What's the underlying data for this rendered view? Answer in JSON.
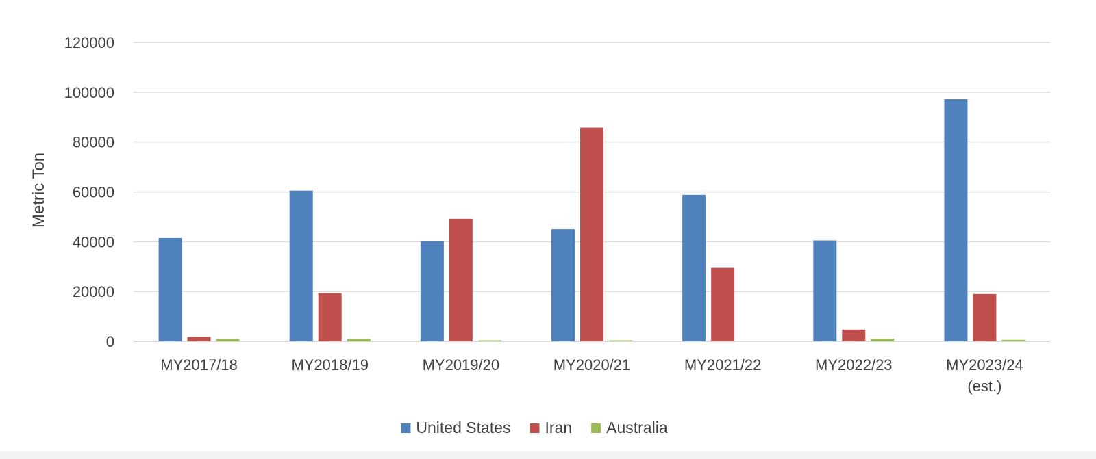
{
  "chart_data": {
    "type": "bar",
    "title": "",
    "xlabel": "",
    "ylabel": "Metric Ton",
    "ylim": [
      0,
      120000
    ],
    "yticks": [
      "0",
      "20000",
      "40000",
      "60000",
      "80000",
      "100000",
      "120000"
    ],
    "grid": true,
    "legend_position": "bottom",
    "categories": [
      [
        "MY2017/18"
      ],
      [
        "MY2018/19"
      ],
      [
        "MY2019/20"
      ],
      [
        "MY2020/21"
      ],
      [
        "MY2021/22"
      ],
      [
        "MY2022/23"
      ],
      [
        "MY2023/24",
        "(est.)"
      ]
    ],
    "series": [
      {
        "name": "United States",
        "color": "#4f81bd",
        "values": [
          41500,
          60500,
          40200,
          45000,
          58800,
          40500,
          97200
        ]
      },
      {
        "name": "Iran",
        "color": "#c0504d",
        "values": [
          1800,
          19300,
          49200,
          85800,
          29500,
          4700,
          19000
        ]
      },
      {
        "name": "Australia",
        "color": "#9bbb59",
        "values": [
          900,
          900,
          400,
          400,
          0,
          1100,
          600
        ]
      }
    ],
    "gridline_color": "#d9d9d9",
    "axis_color": "#d9d9d9",
    "text_color": "#404040"
  }
}
